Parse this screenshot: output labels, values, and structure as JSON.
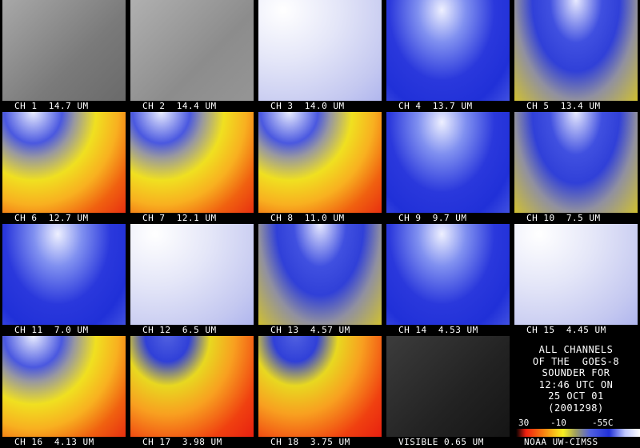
{
  "panels": [
    {
      "label": "CH 1  14.7 UM"
    },
    {
      "label": "CH 2  14.4 UM"
    },
    {
      "label": "CH 3  14.0 UM"
    },
    {
      "label": "CH 4  13.7 UM"
    },
    {
      "label": "CH 5  13.4 UM"
    },
    {
      "label": "CH 6  12.7 UM"
    },
    {
      "label": "CH 7  12.1 UM"
    },
    {
      "label": "CH 8  11.0 UM"
    },
    {
      "label": "CH 9  9.7 UM"
    },
    {
      "label": "CH 10  7.5 UM"
    },
    {
      "label": "CH 11  7.0 UM"
    },
    {
      "label": "CH 12  6.5 UM"
    },
    {
      "label": "CH 13  4.57 UM"
    },
    {
      "label": "CH 14  4.53 UM"
    },
    {
      "label": "CH 15  4.45 UM"
    },
    {
      "label": "CH 16  4.13 UM"
    },
    {
      "label": "CH 17  3.98 UM"
    },
    {
      "label": "CH 18  3.75 UM"
    },
    {
      "label": "VISIBLE 0.65 UM"
    }
  ],
  "info": {
    "lines": [
      "ALL CHANNELS",
      "OF THE  GOES-8",
      "SOUNDER FOR",
      "12:46 UTC ON",
      "25 OCT 01",
      "(2001298)"
    ],
    "scale_labels": [
      "30",
      "-10",
      "-55C"
    ],
    "credit": "NOAA UW-CIMSS"
  }
}
